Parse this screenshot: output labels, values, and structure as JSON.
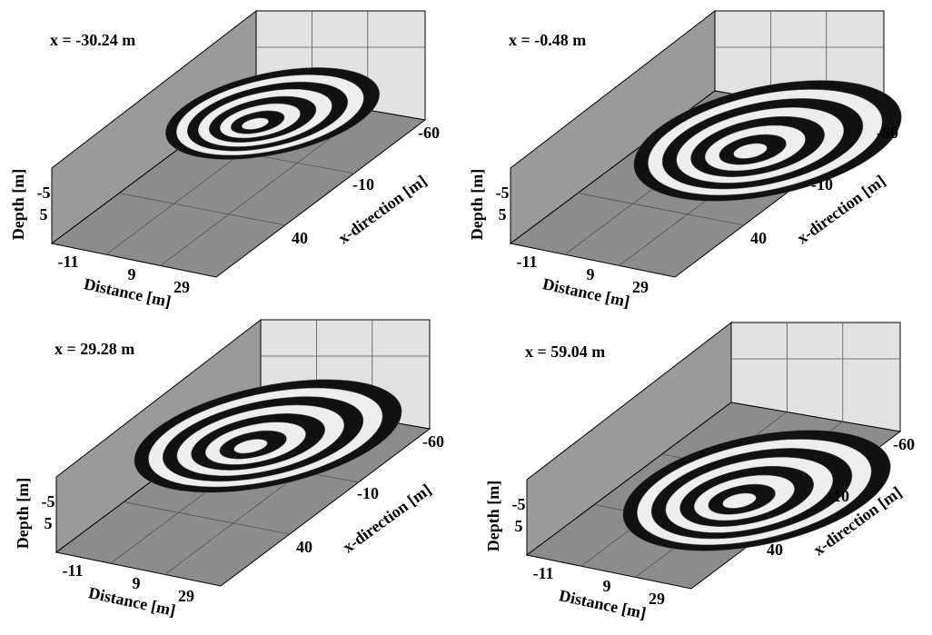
{
  "panels": [
    {
      "title": "x = -30.24 m",
      "depth_label": "Depth [m]",
      "depth_ticks": [
        "-5",
        "5"
      ],
      "distance_label": "Distance [m]",
      "distance_ticks": [
        "-11",
        "9",
        "29"
      ],
      "x_label": "x-direction [m]",
      "x_ticks": [
        "-60",
        "-10",
        "40"
      ]
    },
    {
      "title": "x = -0.48 m",
      "depth_label": "Depth [m]",
      "depth_ticks": [
        "-5",
        "5"
      ],
      "distance_label": "Distance [m]",
      "distance_ticks": [
        "-11",
        "9",
        "29"
      ],
      "x_label": "x-direction [m]",
      "x_ticks": [
        "-60",
        "-10",
        "40"
      ]
    },
    {
      "title": "x = 29.28 m",
      "depth_label": "Depth [m]",
      "depth_ticks": [
        "-5",
        "5"
      ],
      "distance_label": "Distance [m]",
      "distance_ticks": [
        "-11",
        "9",
        "29"
      ],
      "x_label": "x-direction [m]",
      "x_ticks": [
        "-60",
        "-10",
        "40"
      ]
    },
    {
      "title": "x = 59.04 m",
      "depth_label": "Depth [m]",
      "depth_ticks": [
        "-5",
        "5"
      ],
      "distance_label": "Distance [m]",
      "distance_ticks": [
        "-11",
        "9",
        "29"
      ],
      "x_label": "x-direction [m]",
      "x_ticks": [
        "-60",
        "-10",
        "40"
      ]
    }
  ]
}
